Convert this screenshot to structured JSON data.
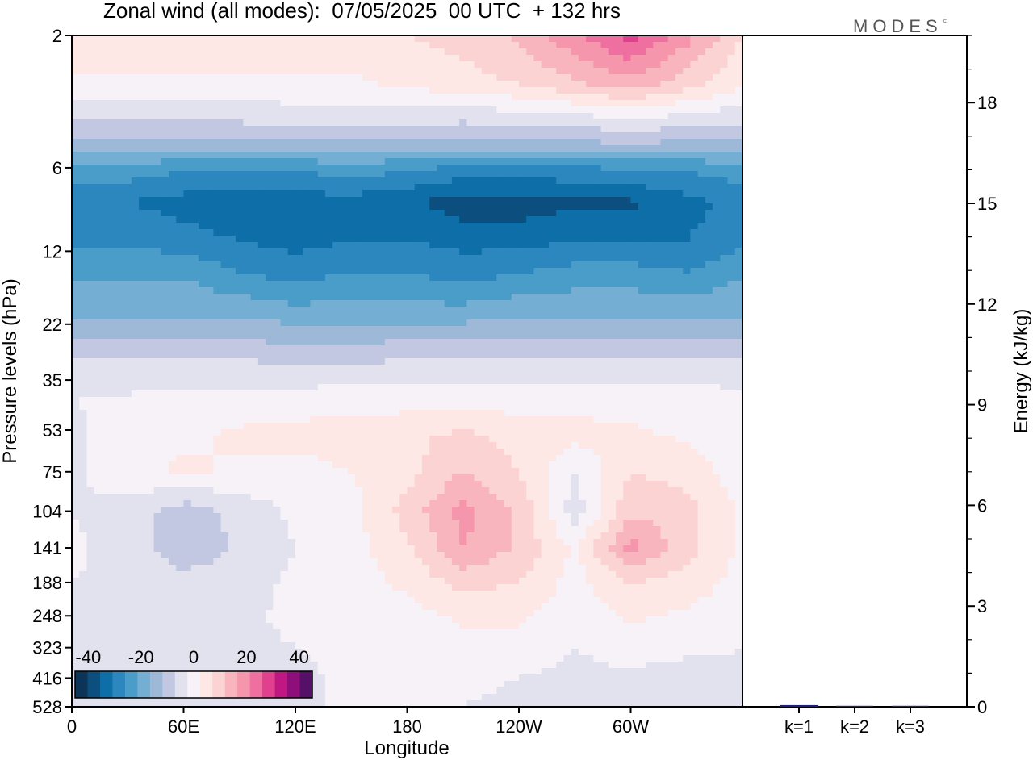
{
  "title": "Zonal wind (all modes):  07/05/2025  00 UTC  + 132 hrs",
  "brand": "MODES",
  "brand_mark": "©",
  "colors": {
    "scale": [
      "#0b3457",
      "#0c4f7e",
      "#0e6fa8",
      "#2b87bd",
      "#4a9cc9",
      "#74aed3",
      "#9eb8d8",
      "#c3c8e2",
      "#e2e2ef",
      "#f6f2f7",
      "#fde8e6",
      "#fbd3d3",
      "#f8b5bd",
      "#f596ac",
      "#ef6fa0",
      "#e0408e",
      "#bf1882",
      "#8e0e7b",
      "#561067"
    ]
  },
  "chart_data": [
    {
      "type": "heatmap",
      "title": "Zonal wind (all modes):  07/05/2025  00 UTC  + 132 hrs",
      "xlabel": "Longitude",
      "ylabel": "Pressure levels (hPa)",
      "x_ticks": [
        "0",
        "60E",
        "120E",
        "180",
        "120W",
        "60W"
      ],
      "x_tick_degrees": [
        0,
        60,
        120,
        180,
        240,
        300
      ],
      "x_range": [
        0,
        360
      ],
      "y_ticks": [
        "2",
        "6",
        "12",
        "22",
        "35",
        "53",
        "75",
        "104",
        "141",
        "188",
        "248",
        "323",
        "416",
        "528"
      ],
      "y_scale": "log",
      "y_reversed": true,
      "colorbar": {
        "tick_labels": [
          "-40",
          "-20",
          "0",
          "20",
          "40"
        ],
        "tick_values": [
          -40,
          -20,
          0,
          20,
          40
        ],
        "range": [
          -45,
          45
        ],
        "step": 5,
        "placement": "bottom-left"
      },
      "rows": [
        {
          "p": 2,
          "v": [
            8,
            8,
            8,
            8,
            8,
            8,
            10,
            12,
            16,
            24,
            32,
            22,
            10
          ]
        },
        {
          "p": 3,
          "v": [
            4,
            4,
            4,
            4,
            4,
            4,
            6,
            8,
            10,
            14,
            18,
            12,
            6
          ]
        },
        {
          "p": 4,
          "v": [
            -4,
            -4,
            -5,
            -4,
            -3,
            -3,
            -3,
            -4,
            -3,
            -2,
            0,
            -2,
            -4
          ]
        },
        {
          "p": 5,
          "v": [
            -12,
            -12,
            -13,
            -12,
            -12,
            -12,
            -12,
            -12,
            -12,
            -12,
            -11,
            -12,
            -12
          ]
        },
        {
          "p": 6,
          "v": [
            -22,
            -22,
            -24,
            -24,
            -24,
            -22,
            -24,
            -26,
            -26,
            -26,
            -24,
            -24,
            -22
          ]
        },
        {
          "p": 8,
          "v": [
            -30,
            -30,
            -32,
            -34,
            -33,
            -32,
            -34,
            -38,
            -38,
            -36,
            -36,
            -32,
            -28
          ]
        },
        {
          "p": 11,
          "v": [
            -26,
            -26,
            -28,
            -30,
            -32,
            -30,
            -30,
            -32,
            -32,
            -30,
            -30,
            -30,
            -26
          ]
        },
        {
          "p": 15,
          "v": [
            -20,
            -20,
            -20,
            -24,
            -26,
            -24,
            -24,
            -26,
            -24,
            -22,
            -22,
            -24,
            -20
          ]
        },
        {
          "p": 20,
          "v": [
            -16,
            -16,
            -16,
            -16,
            -18,
            -18,
            -18,
            -18,
            -16,
            -16,
            -16,
            -16,
            -16
          ]
        },
        {
          "p": 26,
          "v": [
            -9,
            -9,
            -9,
            -9,
            -10,
            -10,
            -9,
            -9,
            -9,
            -9,
            -8,
            -9,
            -9
          ]
        },
        {
          "p": 32,
          "v": [
            -3,
            -3,
            -3,
            -3,
            -3,
            -3,
            -3,
            -3,
            -3,
            -3,
            -3,
            -3,
            -3
          ]
        },
        {
          "p": 42,
          "v": [
            0,
            1,
            2,
            2,
            2,
            3,
            3,
            3,
            3,
            3,
            3,
            3,
            2
          ]
        },
        {
          "p": 55,
          "v": [
            -1,
            2,
            4,
            6,
            7,
            8,
            9,
            11,
            8,
            7,
            6,
            4,
            2
          ]
        },
        {
          "p": 75,
          "v": [
            -1,
            3,
            6,
            4,
            3,
            5,
            8,
            15,
            10,
            0,
            10,
            8,
            2
          ]
        },
        {
          "p": 104,
          "v": [
            0,
            -2,
            -8,
            -3,
            1,
            3,
            12,
            22,
            14,
            -3,
            14,
            12,
            4
          ]
        },
        {
          "p": 141,
          "v": [
            1,
            -2,
            -9,
            -4,
            0,
            3,
            9,
            20,
            14,
            4,
            22,
            12,
            4
          ]
        },
        {
          "p": 188,
          "v": [
            0,
            -1,
            -3,
            -2,
            1,
            3,
            6,
            12,
            10,
            3,
            10,
            8,
            3
          ]
        },
        {
          "p": 248,
          "v": [
            0,
            0,
            -1,
            -1,
            1,
            2,
            3,
            6,
            6,
            2,
            6,
            4,
            2
          ]
        },
        {
          "p": 323,
          "v": [
            -1,
            -1,
            -1,
            -1,
            0,
            1,
            2,
            3,
            3,
            0,
            2,
            1,
            0
          ]
        },
        {
          "p": 416,
          "v": [
            -1,
            -1,
            -1,
            -1,
            -1,
            1,
            1,
            1,
            0,
            -1,
            -1,
            -2,
            -1
          ]
        },
        {
          "p": 528,
          "v": [
            -1,
            -1,
            -1,
            -1,
            -1,
            1,
            1,
            0,
            -1,
            -2,
            -2,
            -3,
            -2
          ]
        }
      ],
      "row_longitudes": [
        0,
        30,
        60,
        90,
        120,
        150,
        180,
        210,
        240,
        270,
        300,
        330,
        360
      ]
    },
    {
      "type": "bar",
      "categories": [
        "k=1",
        "k=2",
        "k=3"
      ],
      "values": [
        0.05,
        0.02,
        0.01
      ],
      "ylabel": "Energy (kJ/kg)",
      "y_ticks": [
        "0",
        "3",
        "6",
        "9",
        "12",
        "15",
        "18"
      ],
      "ylim": [
        0,
        20
      ],
      "color": "#1d1f7a"
    }
  ]
}
